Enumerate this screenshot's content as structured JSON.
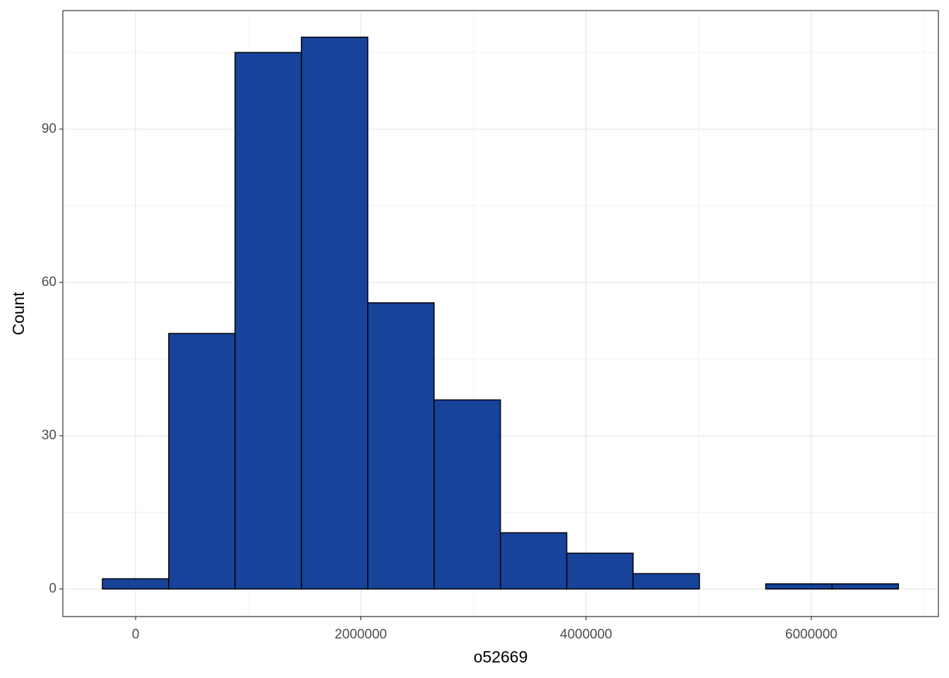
{
  "chart_data": {
    "type": "histogram",
    "x_label": "o52669",
    "y_label": "Count",
    "bins": [
      -294500,
      294500,
      883500,
      1472500,
      2061500,
      2650500,
      3239500,
      3828500,
      4417500,
      5006500,
      5595500,
      6184500,
      6773500
    ],
    "values": [
      2,
      50,
      105,
      108,
      56,
      37,
      11,
      7,
      3,
      0,
      1,
      1
    ],
    "color": "#17439b",
    "xlim": [
      -645800,
      7128500
    ],
    "ylim": [
      -5.4,
      113.2
    ],
    "xticks": [
      0,
      2000000,
      4000000,
      6000000
    ],
    "yticks": [
      0,
      30,
      60,
      90
    ],
    "xminor": [
      1000000,
      3000000,
      5000000,
      7000000
    ],
    "yminor": [
      15,
      45,
      75,
      105
    ],
    "grid": true
  }
}
